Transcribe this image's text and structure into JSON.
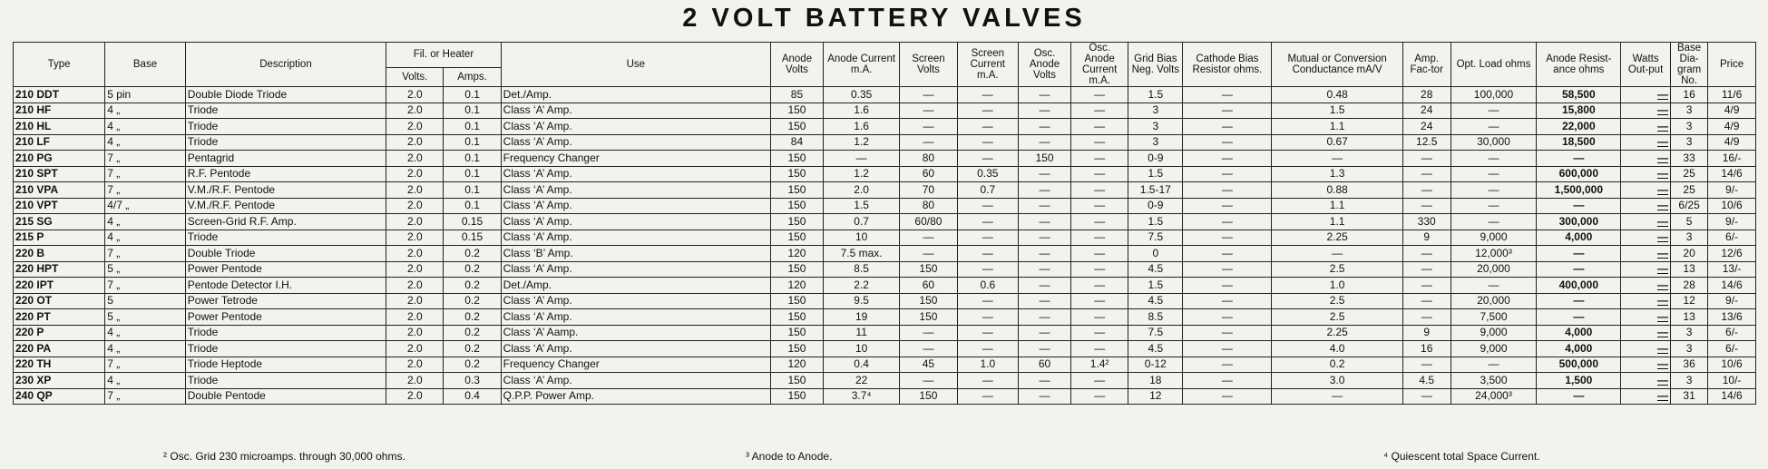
{
  "title": "2 VOLT BATTERY VALVES",
  "table": {
    "headers": [
      "Type",
      "Base",
      "Description",
      "Fil. or Heater",
      "Volts.",
      "Amps.",
      "Use",
      "Anode Volts",
      "Anode Current m.A.",
      "Screen Volts",
      "Screen Current m.A.",
      "Osc. Anode Volts",
      "Osc. Anode Current m.A.",
      "Grid Bias Neg. Volts",
      "Cathode Bias Resistor ohms.",
      "Mutual or Conversion Conductance mA/V",
      "Amp. Fac-tor",
      "Opt. Load ohms",
      "Anode Resist-ance ohms",
      "Watts Out-put",
      "Base Dia-gram No.",
      "Price"
    ],
    "rows": [
      [
        "210 DDT",
        "5 pin",
        "Double Diode Triode",
        "2.0",
        "0.1",
        "Det./Amp.",
        "85",
        "0.35",
        "—",
        "—",
        "—",
        "—",
        "1.5",
        "—",
        "0.48",
        "28",
        "100,000",
        "58,500",
        "—",
        "16",
        "11/6"
      ],
      [
        "210 HF",
        "4 „",
        "Triode",
        "2.0",
        "0.1",
        "Class ‘A’ Amp.",
        "150",
        "1.6",
        "—",
        "—",
        "—",
        "—",
        "3",
        "—",
        "1.5",
        "24",
        "—",
        "15,800",
        "—",
        "3",
        "4/9"
      ],
      [
        "210 HL",
        "4 „",
        "Triode",
        "2.0",
        "0.1",
        "Class ‘A’ Amp.",
        "150",
        "1.6",
        "—",
        "—",
        "—",
        "—",
        "3",
        "—",
        "1.1",
        "24",
        "—",
        "22,000",
        "—",
        "3",
        "4/9"
      ],
      [
        "210 LF",
        "4 „",
        "Triode",
        "2.0",
        "0.1",
        "Class ‘A’ Amp.",
        "84",
        "1.2",
        "—",
        "—",
        "—",
        "—",
        "3",
        "—",
        "0.67",
        "12.5",
        "30,000",
        "18,500",
        "—",
        "3",
        "4/9"
      ],
      [
        "210 PG",
        "7 „",
        "Pentagrid",
        "2.0",
        "0.1",
        "Frequency Changer",
        "150",
        "—",
        "80",
        "—",
        "150",
        "—",
        "0-9",
        "—",
        "—",
        "—",
        "—",
        "—",
        "—",
        "33",
        "16/-"
      ],
      [
        "210 SPT",
        "7 „",
        "R.F. Pentode",
        "2.0",
        "0.1",
        "Class ‘A’ Amp.",
        "150",
        "1.2",
        "60",
        "0.35",
        "—",
        "—",
        "1.5",
        "—",
        "1.3",
        "—",
        "—",
        "600,000",
        "—",
        "25",
        "14/6"
      ],
      [
        "210 VPA",
        "7 „",
        "V.M./R.F. Pentode",
        "2.0",
        "0.1",
        "Class ‘A’ Amp.",
        "150",
        "2.0",
        "70",
        "0.7",
        "—",
        "—",
        "1.5-17",
        "—",
        "0.88",
        "—",
        "—",
        "1,500,000",
        "—",
        "25",
        "9/-"
      ],
      [
        "210 VPT",
        "4/7 „",
        "V.M./R.F. Pentode",
        "2.0",
        "0.1",
        "Class ‘A’ Amp.",
        "150",
        "1.5",
        "80",
        "—",
        "—",
        "—",
        "0-9",
        "—",
        "1.1",
        "—",
        "—",
        "—",
        "—",
        "6/25",
        "10/6"
      ],
      [
        "215 SG",
        "4 „",
        "Screen-Grid R.F. Amp.",
        "2.0",
        "0.15",
        "Class ‘A’ Amp.",
        "150",
        "0.7",
        "60/80",
        "—",
        "—",
        "—",
        "1.5",
        "—",
        "1.1",
        "330",
        "—",
        "300,000",
        "—",
        "5",
        "9/-"
      ],
      [
        "215 P",
        "4 „",
        "Triode",
        "2.0",
        "0.15",
        "Class ‘A’ Amp.",
        "150",
        "10",
        "—",
        "—",
        "—",
        "—",
        "7.5",
        "—",
        "2.25",
        "9",
        "9,000",
        "4,000",
        "—",
        "3",
        "6/-"
      ],
      [
        "220 B",
        "7 „",
        "Double Triode",
        "2.0",
        "0.2",
        "Class ‘B’ Amp.",
        "120",
        "7.5 max.",
        "—",
        "—",
        "—",
        "—",
        "0",
        "—",
        "—",
        "—",
        "12,000³",
        "—",
        "—",
        "20",
        "12/6"
      ],
      [
        "220 HPT",
        "5 „",
        "Power Pentode",
        "2.0",
        "0.2",
        "Class ‘A’ Amp.",
        "150",
        "8.5",
        "150",
        "—",
        "—",
        "—",
        "4.5",
        "—",
        "2.5",
        "—",
        "20,000",
        "—",
        "—",
        "13",
        "13/-"
      ],
      [
        "220 IPT",
        "7 „",
        "Pentode Detector I.H.",
        "2.0",
        "0.2",
        "Det./Amp.",
        "120",
        "2.2",
        "60",
        "0.6",
        "—",
        "—",
        "1.5",
        "—",
        "1.0",
        "—",
        "—",
        "400,000",
        "—",
        "28",
        "14/6"
      ],
      [
        "220 OT",
        "5",
        "Power Tetrode",
        "2.0",
        "0.2",
        "Class ‘A’ Amp.",
        "150",
        "9.5",
        "150",
        "—",
        "—",
        "—",
        "4.5",
        "—",
        "2.5",
        "—",
        "20,000",
        "—",
        "—",
        "12",
        "9/-"
      ],
      [
        "220 PT",
        "5 „",
        "Power Pentode",
        "2.0",
        "0.2",
        "Class ‘A’ Amp.",
        "150",
        "19",
        "150",
        "—",
        "—",
        "—",
        "8.5",
        "—",
        "2.5",
        "—",
        "7,500",
        "—",
        "—",
        "13",
        "13/6"
      ],
      [
        "220 P",
        "4 „",
        "Triode",
        "2.0",
        "0.2",
        "Class ‘A’ Aamp.",
        "150",
        "11",
        "—",
        "—",
        "—",
        "—",
        "7.5",
        "—",
        "2.25",
        "9",
        "9,000",
        "4,000",
        "—",
        "3",
        "6/-"
      ],
      [
        "220 PA",
        "4 „",
        "Triode",
        "2.0",
        "0.2",
        "Class ‘A’ Amp.",
        "150",
        "10",
        "—",
        "—",
        "—",
        "—",
        "4.5",
        "—",
        "4.0",
        "16",
        "9,000",
        "4,000",
        "—",
        "3",
        "6/-"
      ],
      [
        "220 TH",
        "7 „",
        "Triode Heptode",
        "2.0",
        "0.2",
        "Frequency Changer",
        "120",
        "0.4",
        "45",
        "1.0",
        "60",
        "1.4²",
        "0-12",
        "—",
        "0.2",
        "—",
        "—",
        "500,000",
        "—",
        "36",
        "10/6"
      ],
      [
        "230 XP",
        "4 „",
        "Triode",
        "2.0",
        "0.3",
        "Class ‘A’ Amp.",
        "150",
        "22",
        "—",
        "—",
        "—",
        "—",
        "18",
        "—",
        "3.0",
        "4.5",
        "3,500",
        "1,500",
        "—",
        "3",
        "10/-"
      ],
      [
        "240 QP",
        "7 „",
        "Double Pentode",
        "2.0",
        "0.4",
        "Q.P.P. Power Amp.",
        "150",
        "3.7⁴",
        "150",
        "—",
        "—",
        "—",
        "12",
        "—",
        "—",
        "—",
        "24,000³",
        "—",
        "—",
        "31",
        "14/6"
      ]
    ]
  },
  "footnotes": [
    "² Osc. Grid 230 microamps. through 30,000 ohms.",
    "³ Anode to Anode.",
    "⁴ Quiescent total Space Current."
  ]
}
